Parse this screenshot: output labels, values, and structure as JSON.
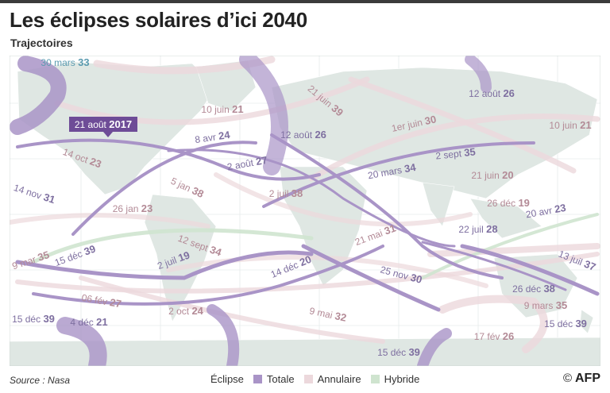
{
  "header": {
    "title": "Les éclipses solaires d’ici 2040",
    "subtitle": "Trajectoires"
  },
  "colors": {
    "totale": "#a994c7",
    "annulaire": "#ecd8dc",
    "hybride": "#cfe4cf",
    "land": "#dfe7e3",
    "highlight": "#6e4c97"
  },
  "eclipses": [
    {
      "date": "30 mars",
      "year": "33",
      "type": "hybride"
    },
    {
      "date": "10 juin",
      "year": "21",
      "type": "annulaire"
    },
    {
      "date": "21 juin",
      "year": "39",
      "type": "annulaire"
    },
    {
      "date": "12 août",
      "year": "26",
      "type": "totale"
    },
    {
      "date": "1er juin",
      "year": "30",
      "type": "annulaire"
    },
    {
      "date": "10 juin",
      "year": "21",
      "type": "annulaire"
    },
    {
      "date": "21 août",
      "year": "2017",
      "type": "totale"
    },
    {
      "date": "8 avr",
      "year": "24",
      "type": "totale"
    },
    {
      "date": "12 août",
      "year": "26",
      "type": "totale"
    },
    {
      "date": "14 oct",
      "year": "23",
      "type": "annulaire"
    },
    {
      "date": "2 août",
      "year": "27",
      "type": "totale"
    },
    {
      "date": "2 sept",
      "year": "35",
      "type": "totale"
    },
    {
      "date": "20 mars",
      "year": "34",
      "type": "totale"
    },
    {
      "date": "21 juin",
      "year": "20",
      "type": "annulaire"
    },
    {
      "date": "14 nov",
      "year": "31",
      "type": "hybride"
    },
    {
      "date": "5 jan",
      "year": "38",
      "type": "annulaire"
    },
    {
      "date": "2 juil",
      "year": "38",
      "type": "annulaire"
    },
    {
      "date": "26 déc",
      "year": "19",
      "type": "annulaire"
    },
    {
      "date": "26 jan",
      "year": "23",
      "type": "annulaire"
    },
    {
      "date": "20 avr",
      "year": "23",
      "type": "hybride"
    },
    {
      "date": "21 mai",
      "year": "31",
      "type": "annulaire"
    },
    {
      "date": "22 juil",
      "year": "28",
      "type": "totale"
    },
    {
      "date": "12 sept",
      "year": "34",
      "type": "annulaire"
    },
    {
      "date": "9 mar",
      "year": "35",
      "type": "annulaire"
    },
    {
      "date": "15 déc",
      "year": "39",
      "type": "totale"
    },
    {
      "date": "2 juil",
      "year": "19",
      "type": "totale"
    },
    {
      "date": "14 déc",
      "year": "20",
      "type": "totale"
    },
    {
      "date": "13 juil",
      "year": "37",
      "type": "totale"
    },
    {
      "date": "25 nov",
      "year": "30",
      "type": "totale"
    },
    {
      "date": "26 déc",
      "year": "38",
      "type": "totale"
    },
    {
      "date": "06 fév",
      "year": "27",
      "type": "annulaire"
    },
    {
      "date": "9 mars",
      "year": "35",
      "type": "annulaire"
    },
    {
      "date": "2 oct",
      "year": "24",
      "type": "annulaire"
    },
    {
      "date": "15 déc",
      "year": "39",
      "type": "totale"
    },
    {
      "date": "4 déc",
      "year": "21",
      "type": "totale"
    },
    {
      "date": "9 mai",
      "year": "32",
      "type": "annulaire"
    },
    {
      "date": "15 déc",
      "year": "39",
      "type": "totale"
    },
    {
      "date": "17 fév",
      "year": "26",
      "type": "annulaire"
    },
    {
      "date": "15 déc",
      "year": "39",
      "type": "totale"
    }
  ],
  "legend": {
    "title": "Éclipse",
    "items": [
      "Totale",
      "Annulaire",
      "Hybride"
    ]
  },
  "footer": {
    "source": "Source : Nasa",
    "credit": "AFP",
    "credit_symbol": "©"
  }
}
